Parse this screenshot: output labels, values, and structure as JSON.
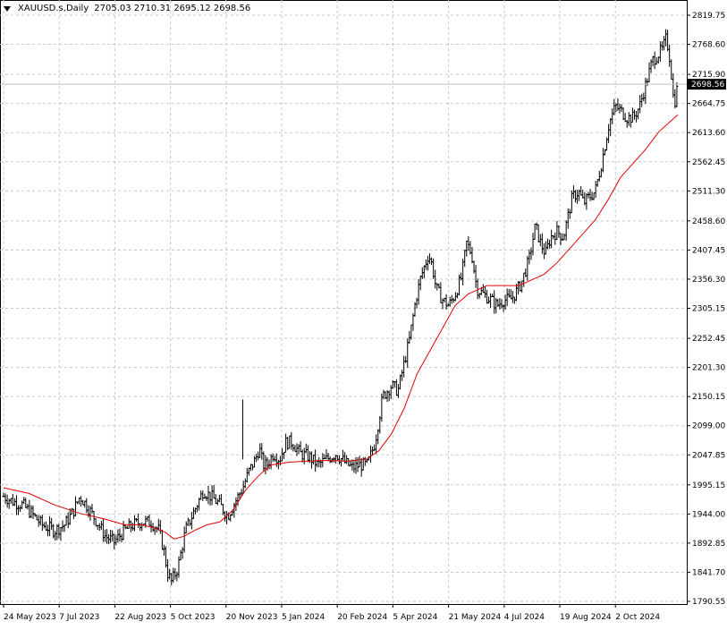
{
  "header": {
    "symbol": "XAUUSD.s,Daily",
    "ohlc": "2705.03 2710.31 2695.12 2698.56"
  },
  "current_price_label": "2698.56",
  "colors": {
    "bars": "#000000",
    "ma": "#e00000",
    "grid": "#c8c8c8",
    "price_line": "#c0c0c0"
  },
  "chart_data": {
    "type": "ohlc",
    "ylim": [
      1790.55,
      2819.75
    ],
    "y_ticks": [
      "2819.75",
      "2768.60",
      "2715.90",
      "2664.75",
      "2613.60",
      "2562.45",
      "2511.30",
      "2458.60",
      "2407.45",
      "2356.30",
      "2305.15",
      "2252.45",
      "2201.30",
      "2150.15",
      "2099.00",
      "2047.85",
      "1995.15",
      "1944.00",
      "1892.85",
      "1841.70",
      "1790.55"
    ],
    "x_labels": [
      "24 May 2023",
      "7 Jul 2023",
      "22 Aug 2023",
      "5 Oct 2023",
      "20 Nov 2023",
      "5 Jan 2024",
      "20 Feb 2024",
      "5 Apr 2024",
      "21 May 2024",
      "4 Jul 2024",
      "19 Aug 2024",
      "2 Oct 2024"
    ],
    "close_path_days": [
      [
        0,
        1975
      ],
      [
        8,
        1965
      ],
      [
        15,
        1960
      ],
      [
        22,
        1945
      ],
      [
        30,
        1925
      ],
      [
        40,
        1915
      ],
      [
        48,
        1925
      ],
      [
        55,
        1950
      ],
      [
        60,
        1975
      ],
      [
        65,
        1960
      ],
      [
        72,
        1935
      ],
      [
        80,
        1905
      ],
      [
        87,
        1895
      ],
      [
        95,
        1915
      ],
      [
        102,
        1925
      ],
      [
        108,
        1930
      ],
      [
        116,
        1930
      ],
      [
        122,
        1915
      ],
      [
        126,
        1880
      ],
      [
        129,
        1840
      ],
      [
        132,
        1825
      ],
      [
        137,
        1850
      ],
      [
        143,
        1915
      ],
      [
        150,
        1950
      ],
      [
        157,
        1985
      ],
      [
        163,
        1975
      ],
      [
        170,
        1960
      ],
      [
        176,
        1940
      ],
      [
        182,
        1965
      ],
      [
        188,
        1990
      ],
      [
        193,
        2020
      ],
      [
        198,
        2040
      ],
      [
        201,
        2060
      ],
      [
        204,
        2030
      ],
      [
        207,
        2030
      ],
      [
        212,
        2050
      ],
      [
        217,
        2040
      ],
      [
        222,
        2070
      ],
      [
        227,
        2070
      ],
      [
        233,
        2050
      ],
      [
        240,
        2045
      ],
      [
        247,
        2030
      ],
      [
        254,
        2040
      ],
      [
        261,
        2050
      ],
      [
        268,
        2035
      ],
      [
        274,
        2025
      ],
      [
        280,
        2030
      ],
      [
        286,
        2030
      ],
      [
        292,
        2070
      ],
      [
        298,
        2150
      ],
      [
        305,
        2170
      ],
      [
        310,
        2160
      ],
      [
        314,
        2200
      ],
      [
        319,
        2250
      ],
      [
        324,
        2320
      ],
      [
        328,
        2360
      ],
      [
        331,
        2380
      ],
      [
        334,
        2400
      ],
      [
        337,
        2380
      ],
      [
        340,
        2340
      ],
      [
        345,
        2320
      ],
      [
        350,
        2310
      ],
      [
        355,
        2330
      ],
      [
        360,
        2360
      ],
      [
        364,
        2420
      ],
      [
        368,
        2400
      ],
      [
        372,
        2340
      ],
      [
        377,
        2330
      ],
      [
        383,
        2320
      ],
      [
        388,
        2310
      ],
      [
        393,
        2320
      ],
      [
        398,
        2320
      ],
      [
        402,
        2330
      ],
      [
        407,
        2350
      ],
      [
        413,
        2390
      ],
      [
        418,
        2450
      ],
      [
        422,
        2420
      ],
      [
        426,
        2400
      ],
      [
        430,
        2430
      ],
      [
        435,
        2440
      ],
      [
        440,
        2430
      ],
      [
        447,
        2500
      ],
      [
        452,
        2510
      ],
      [
        456,
        2490
      ],
      [
        460,
        2500
      ],
      [
        465,
        2510
      ],
      [
        470,
        2560
      ],
      [
        476,
        2630
      ],
      [
        481,
        2660
      ],
      [
        486,
        2650
      ],
      [
        490,
        2640
      ],
      [
        495,
        2640
      ],
      [
        500,
        2660
      ],
      [
        505,
        2700
      ],
      [
        510,
        2740
      ],
      [
        514,
        2750
      ],
      [
        518,
        2760
      ],
      [
        521,
        2780
      ],
      [
        524,
        2740
      ],
      [
        527,
        2660
      ],
      [
        530,
        2698.56
      ]
    ],
    "ma_path_days": [
      [
        0,
        1990
      ],
      [
        20,
        1980
      ],
      [
        40,
        1960
      ],
      [
        60,
        1945
      ],
      [
        80,
        1935
      ],
      [
        95,
        1925
      ],
      [
        108,
        1925
      ],
      [
        118,
        1920
      ],
      [
        127,
        1912
      ],
      [
        134,
        1900
      ],
      [
        142,
        1905
      ],
      [
        150,
        1915
      ],
      [
        160,
        1925
      ],
      [
        170,
        1930
      ],
      [
        180,
        1950
      ],
      [
        190,
        1985
      ],
      [
        200,
        2010
      ],
      [
        210,
        2030
      ],
      [
        225,
        2035
      ],
      [
        240,
        2037
      ],
      [
        255,
        2038
      ],
      [
        270,
        2037
      ],
      [
        285,
        2040
      ],
      [
        295,
        2055
      ],
      [
        305,
        2085
      ],
      [
        315,
        2130
      ],
      [
        325,
        2190
      ],
      [
        335,
        2230
      ],
      [
        345,
        2270
      ],
      [
        355,
        2310
      ],
      [
        365,
        2330
      ],
      [
        380,
        2345
      ],
      [
        395,
        2345
      ],
      [
        405,
        2345
      ],
      [
        415,
        2355
      ],
      [
        425,
        2365
      ],
      [
        435,
        2385
      ],
      [
        445,
        2410
      ],
      [
        455,
        2435
      ],
      [
        465,
        2460
      ],
      [
        475,
        2495
      ],
      [
        485,
        2535
      ],
      [
        495,
        2560
      ],
      [
        505,
        2585
      ],
      [
        515,
        2615
      ],
      [
        525,
        2635
      ],
      [
        530,
        2645
      ]
    ]
  }
}
